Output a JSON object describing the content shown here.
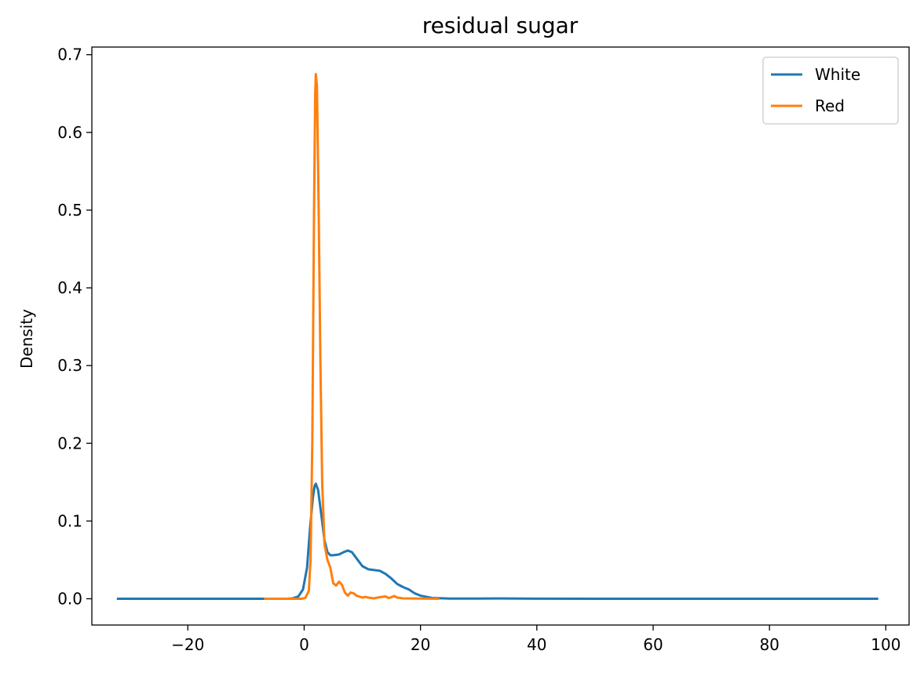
{
  "chart_data": {
    "type": "line",
    "title": "residual sugar",
    "xlabel": "",
    "ylabel": "Density",
    "xlim": [
      -36.5,
      104.0
    ],
    "ylim": [
      -0.0338,
      0.7098
    ],
    "xticks": [
      -20,
      0,
      20,
      40,
      60,
      80,
      100
    ],
    "xtick_labels": [
      "−20",
      "0",
      "20",
      "40",
      "60",
      "80",
      "100"
    ],
    "yticks": [
      0.0,
      0.1,
      0.2,
      0.3,
      0.4,
      0.5,
      0.6,
      0.7
    ],
    "ytick_labels": [
      "0.0",
      "0.1",
      "0.2",
      "0.3",
      "0.4",
      "0.5",
      "0.6",
      "0.7"
    ],
    "grid": false,
    "legend_position": "top-right",
    "series": [
      {
        "name": "White",
        "color": "#1f77b4",
        "points": [
          [
            -32.0,
            0.0
          ],
          [
            -10.0,
            0.0
          ],
          [
            -3.0,
            0.0
          ],
          [
            -2.0,
            0.0005
          ],
          [
            -1.0,
            0.003
          ],
          [
            -0.2,
            0.012
          ],
          [
            0.5,
            0.04
          ],
          [
            1.0,
            0.09
          ],
          [
            1.5,
            0.13
          ],
          [
            1.8,
            0.145
          ],
          [
            2.0,
            0.148
          ],
          [
            2.4,
            0.14
          ],
          [
            3.0,
            0.105
          ],
          [
            3.5,
            0.075
          ],
          [
            4.0,
            0.06
          ],
          [
            4.5,
            0.056
          ],
          [
            5.0,
            0.056
          ],
          [
            6.0,
            0.057
          ],
          [
            6.8,
            0.06
          ],
          [
            7.5,
            0.062
          ],
          [
            8.2,
            0.06
          ],
          [
            9.0,
            0.052
          ],
          [
            10.0,
            0.042
          ],
          [
            11.0,
            0.038
          ],
          [
            12.0,
            0.037
          ],
          [
            13.0,
            0.036
          ],
          [
            14.0,
            0.032
          ],
          [
            15.0,
            0.026
          ],
          [
            16.0,
            0.019
          ],
          [
            17.0,
            0.015
          ],
          [
            18.0,
            0.012
          ],
          [
            19.0,
            0.007
          ],
          [
            20.0,
            0.004
          ],
          [
            22.0,
            0.001
          ],
          [
            25.0,
            0.0003
          ],
          [
            30.0,
            0.0002
          ],
          [
            33.0,
            0.0004
          ],
          [
            40.0,
            0.0001
          ],
          [
            60.0,
            0.0
          ],
          [
            98.5,
            0.0
          ]
        ]
      },
      {
        "name": "Red",
        "color": "#ff7f0e",
        "points": [
          [
            -6.7,
            0.0
          ],
          [
            -2.0,
            0.0
          ],
          [
            -0.5,
            0.0
          ],
          [
            0.2,
            0.001
          ],
          [
            0.8,
            0.01
          ],
          [
            1.1,
            0.05
          ],
          [
            1.4,
            0.2
          ],
          [
            1.7,
            0.5
          ],
          [
            1.9,
            0.65
          ],
          [
            2.0,
            0.675
          ],
          [
            2.2,
            0.66
          ],
          [
            2.5,
            0.5
          ],
          [
            2.8,
            0.3
          ],
          [
            3.1,
            0.15
          ],
          [
            3.5,
            0.07
          ],
          [
            4.0,
            0.05
          ],
          [
            4.5,
            0.04
          ],
          [
            5.0,
            0.02
          ],
          [
            5.5,
            0.017
          ],
          [
            6.0,
            0.022
          ],
          [
            6.5,
            0.018
          ],
          [
            7.0,
            0.008
          ],
          [
            7.5,
            0.004
          ],
          [
            8.0,
            0.008
          ],
          [
            8.5,
            0.007
          ],
          [
            9.0,
            0.004
          ],
          [
            10.0,
            0.0015
          ],
          [
            10.5,
            0.0025
          ],
          [
            11.0,
            0.0015
          ],
          [
            12.0,
            0.0005
          ],
          [
            13.0,
            0.002
          ],
          [
            14.0,
            0.003
          ],
          [
            14.5,
            0.001
          ],
          [
            15.0,
            0.002
          ],
          [
            15.5,
            0.0035
          ],
          [
            16.0,
            0.0015
          ],
          [
            17.0,
            0.0005
          ],
          [
            20.0,
            0.0002
          ],
          [
            23.0,
            0.0
          ]
        ]
      }
    ]
  }
}
